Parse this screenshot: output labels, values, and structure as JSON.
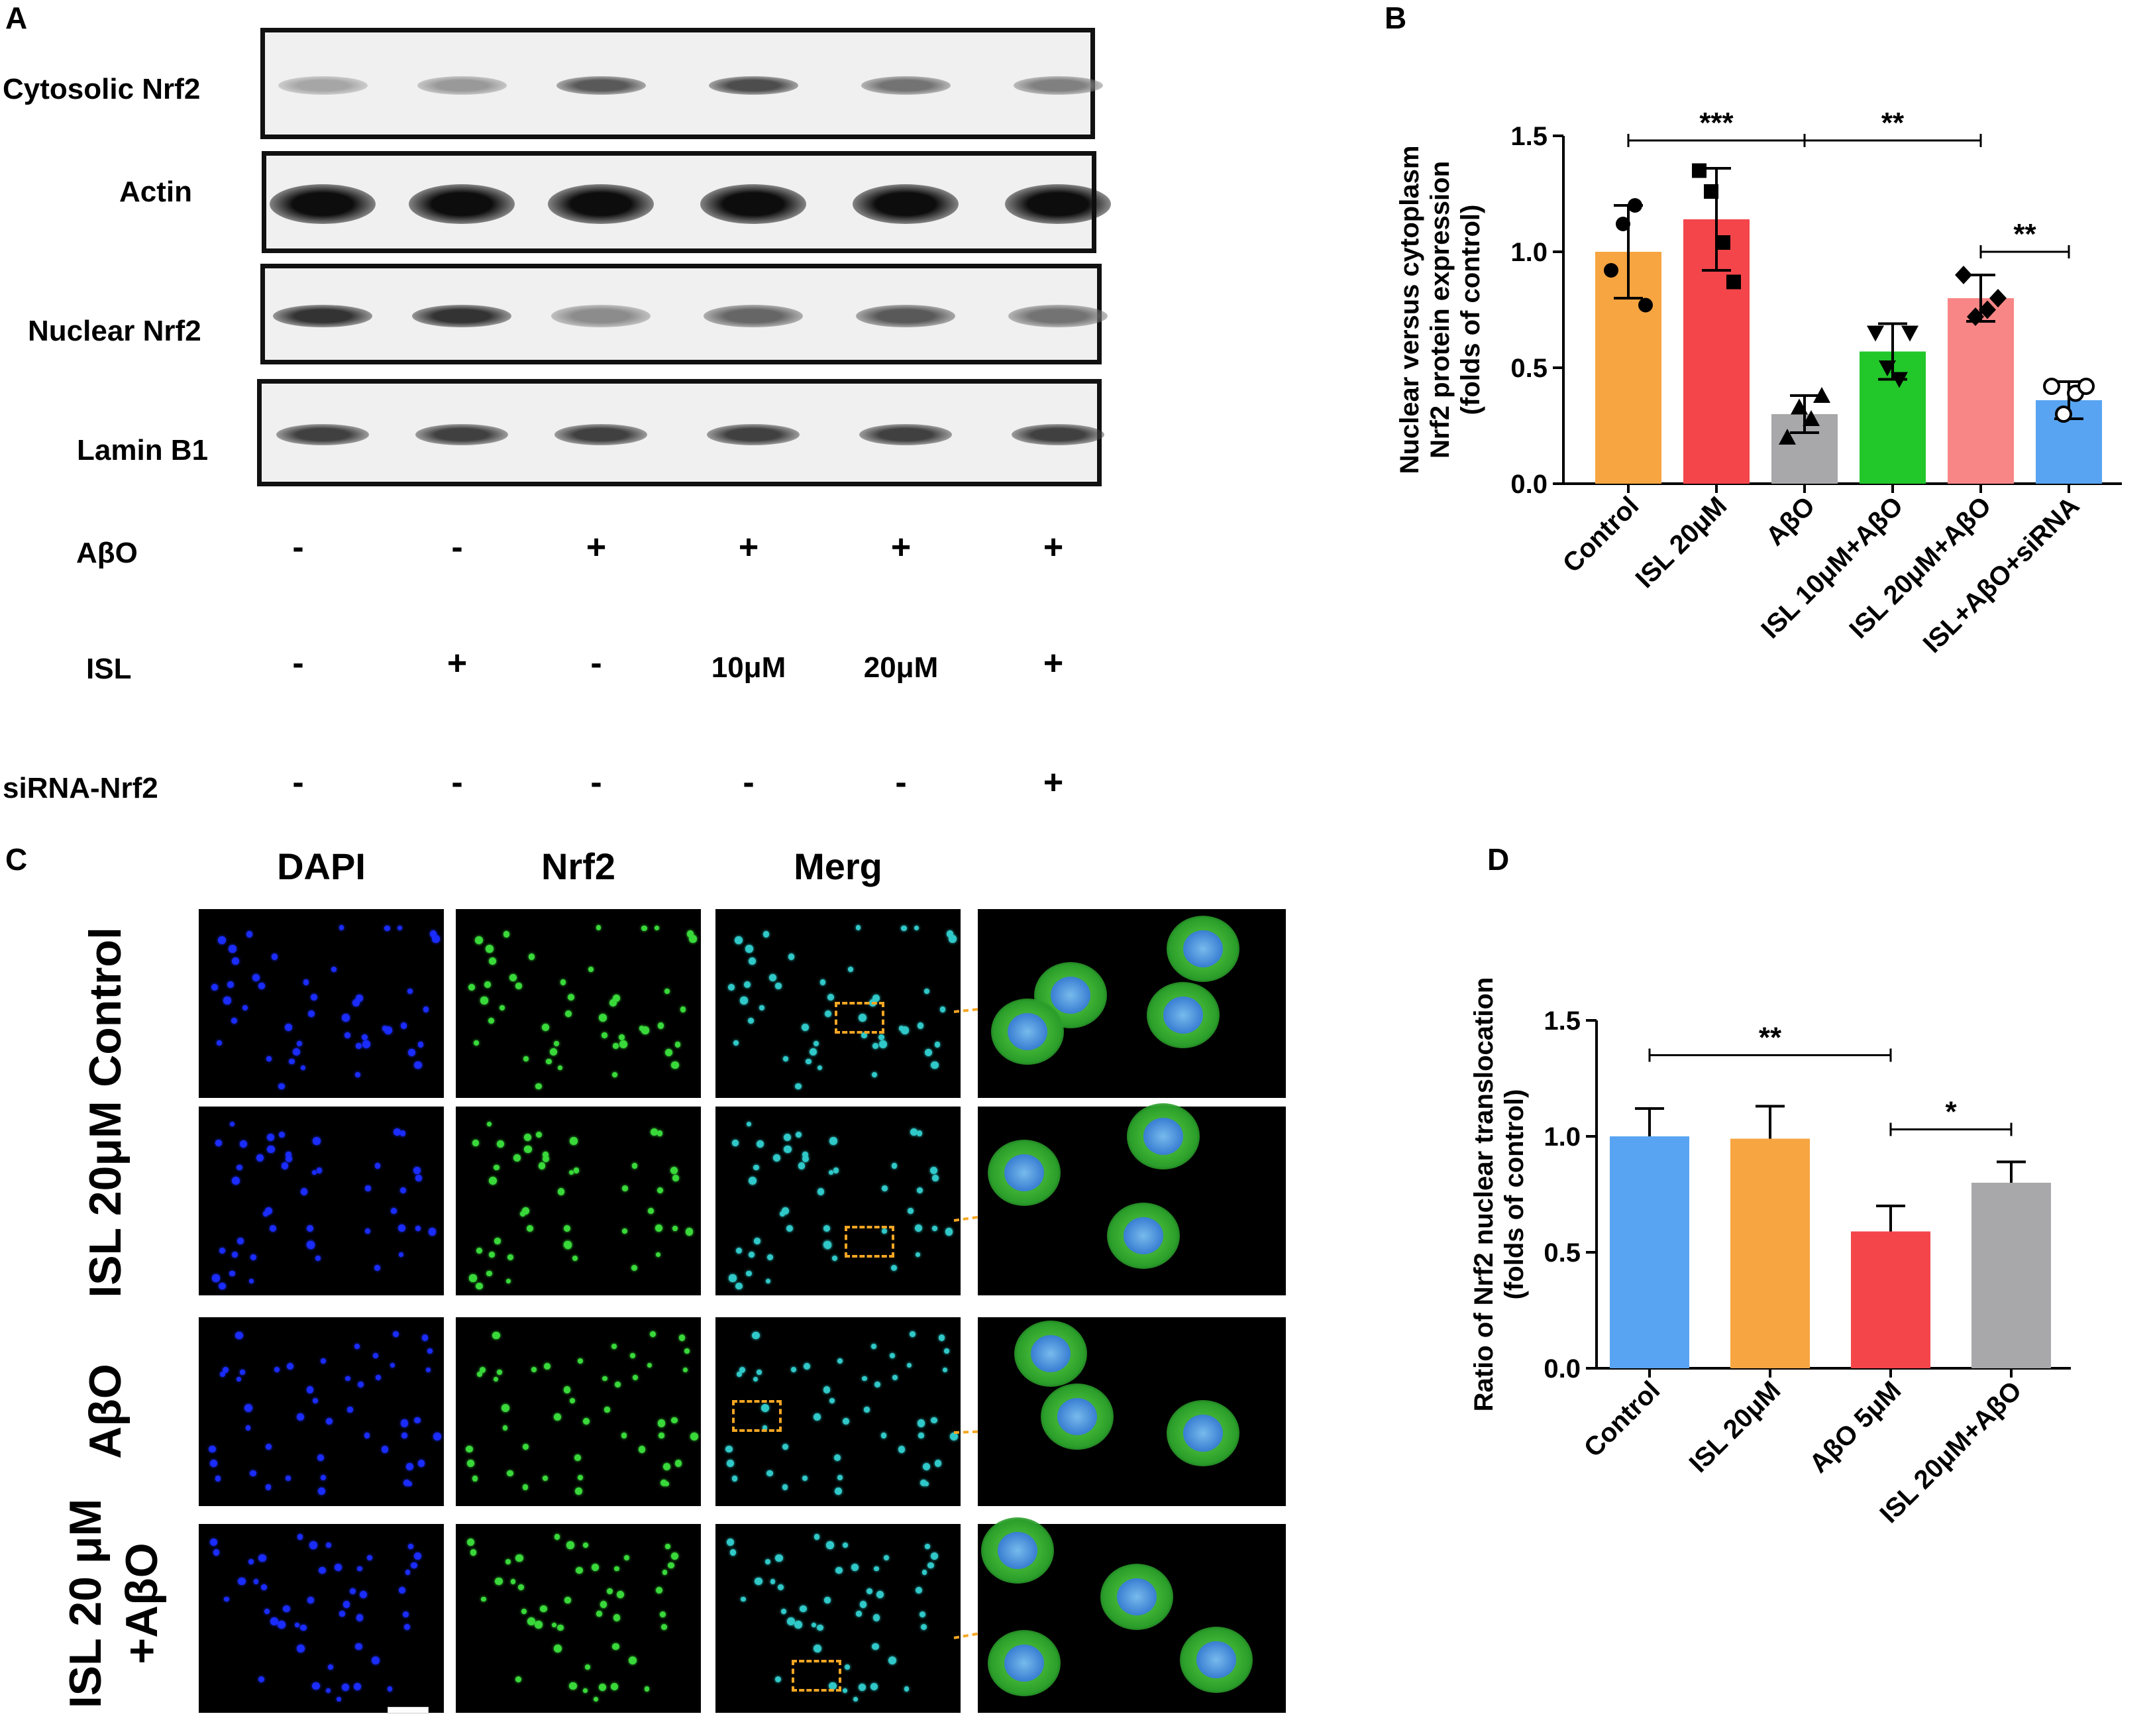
{
  "panels": {
    "a": "A",
    "b": "B",
    "c": "C",
    "d": "D"
  },
  "western": {
    "rows": [
      {
        "label": "Cytosolic Nrf2",
        "darkness": [
          0.35,
          0.4,
          0.65,
          0.7,
          0.55,
          0.5
        ]
      },
      {
        "label": "Actin",
        "darkness": [
          0.95,
          0.95,
          0.95,
          0.95,
          0.95,
          0.95
        ]
      },
      {
        "label": "Nuclear Nrf2",
        "darkness": [
          0.8,
          0.8,
          0.45,
          0.6,
          0.65,
          0.55
        ]
      },
      {
        "label": "Lamin B1",
        "darkness": [
          0.75,
          0.75,
          0.75,
          0.75,
          0.75,
          0.75
        ]
      }
    ],
    "conditions": [
      {
        "label": "AβO",
        "values": [
          "-",
          "-",
          "+",
          "+",
          "+",
          "+"
        ]
      },
      {
        "label": "ISL",
        "values": [
          "-",
          "+",
          "-",
          "10μM",
          "20μM",
          "+"
        ]
      },
      {
        "label": "siRNA-Nrf2",
        "values": [
          "-",
          "-",
          "-",
          "-",
          "-",
          "+"
        ]
      }
    ]
  },
  "microscopy": {
    "columns": [
      "DAPI",
      "Nrf2",
      "Merg"
    ],
    "rows": [
      "Control",
      "ISL 20μM",
      "AβO",
      "ISL 20 μM",
      "+AβO"
    ],
    "colors": {
      "dapi": "#1a2cff",
      "nrf2": "#39d93a",
      "merge": "#30c8c8",
      "box": "#f5a623"
    }
  },
  "chart_data": [
    {
      "type": "bar",
      "panel": "B",
      "ylabel_lines": [
        "Nuclear versus cytoplasm",
        "Nrf2 protein expression",
        "(folds of  control)"
      ],
      "categories": [
        "Control",
        "ISL 20μM",
        "AβO",
        "ISL 10μM+AβO",
        "ISL 20μM+AβO",
        "ISL+AβO+siRNA"
      ],
      "values": [
        1.0,
        1.14,
        0.3,
        0.57,
        0.8,
        0.36
      ],
      "errors": [
        0.2,
        0.22,
        0.08,
        0.12,
        0.1,
        0.08
      ],
      "colors": [
        "#f7a541",
        "#f4454a",
        "#a8a8ab",
        "#22c72a",
        "#f98686",
        "#58a4f2"
      ],
      "points": [
        [
          0.92,
          1.12,
          1.2,
          0.77
        ],
        [
          1.35,
          1.26,
          1.04,
          0.87
        ],
        [
          0.2,
          0.33,
          0.28,
          0.38
        ],
        [
          0.65,
          0.5,
          0.45,
          0.65
        ],
        [
          0.9,
          0.72,
          0.75,
          0.8
        ],
        [
          0.42,
          0.3,
          0.39,
          0.42
        ]
      ],
      "markers": [
        "circle",
        "square",
        "triangle",
        "triangle-down",
        "diamond",
        "open-circle"
      ],
      "ylim": [
        0,
        1.5
      ],
      "yticks": [
        "0.0",
        "0.5",
        "1.0",
        "1.5"
      ],
      "significance": [
        {
          "from": 0,
          "to": 2,
          "label": "***",
          "level": 1.48
        },
        {
          "from": 2,
          "to": 4,
          "label": "**",
          "level": 1.48
        },
        {
          "from": 4,
          "to": 5,
          "label": "**",
          "level": 1.0
        }
      ]
    },
    {
      "type": "bar",
      "panel": "D",
      "ylabel_lines": [
        "Ratio of Nrf2 nuclear translocation",
        "(folds of control)"
      ],
      "categories": [
        "Control",
        "ISL 20μM",
        "AβO 5μM",
        "ISL 20μM+AβO"
      ],
      "values": [
        1.0,
        0.99,
        0.59,
        0.8
      ],
      "errors": [
        0.12,
        0.14,
        0.11,
        0.09
      ],
      "colors": [
        "#58a4f2",
        "#f7a541",
        "#f4454a",
        "#a8a8ab"
      ],
      "ylim": [
        0,
        1.5
      ],
      "yticks": [
        "0.0",
        "0.5",
        "1.0",
        "1.5"
      ],
      "significance": [
        {
          "from": 0,
          "to": 2,
          "label": "**",
          "level": 1.35
        },
        {
          "from": 2,
          "to": 3,
          "label": "*",
          "level": 1.03
        }
      ]
    }
  ]
}
